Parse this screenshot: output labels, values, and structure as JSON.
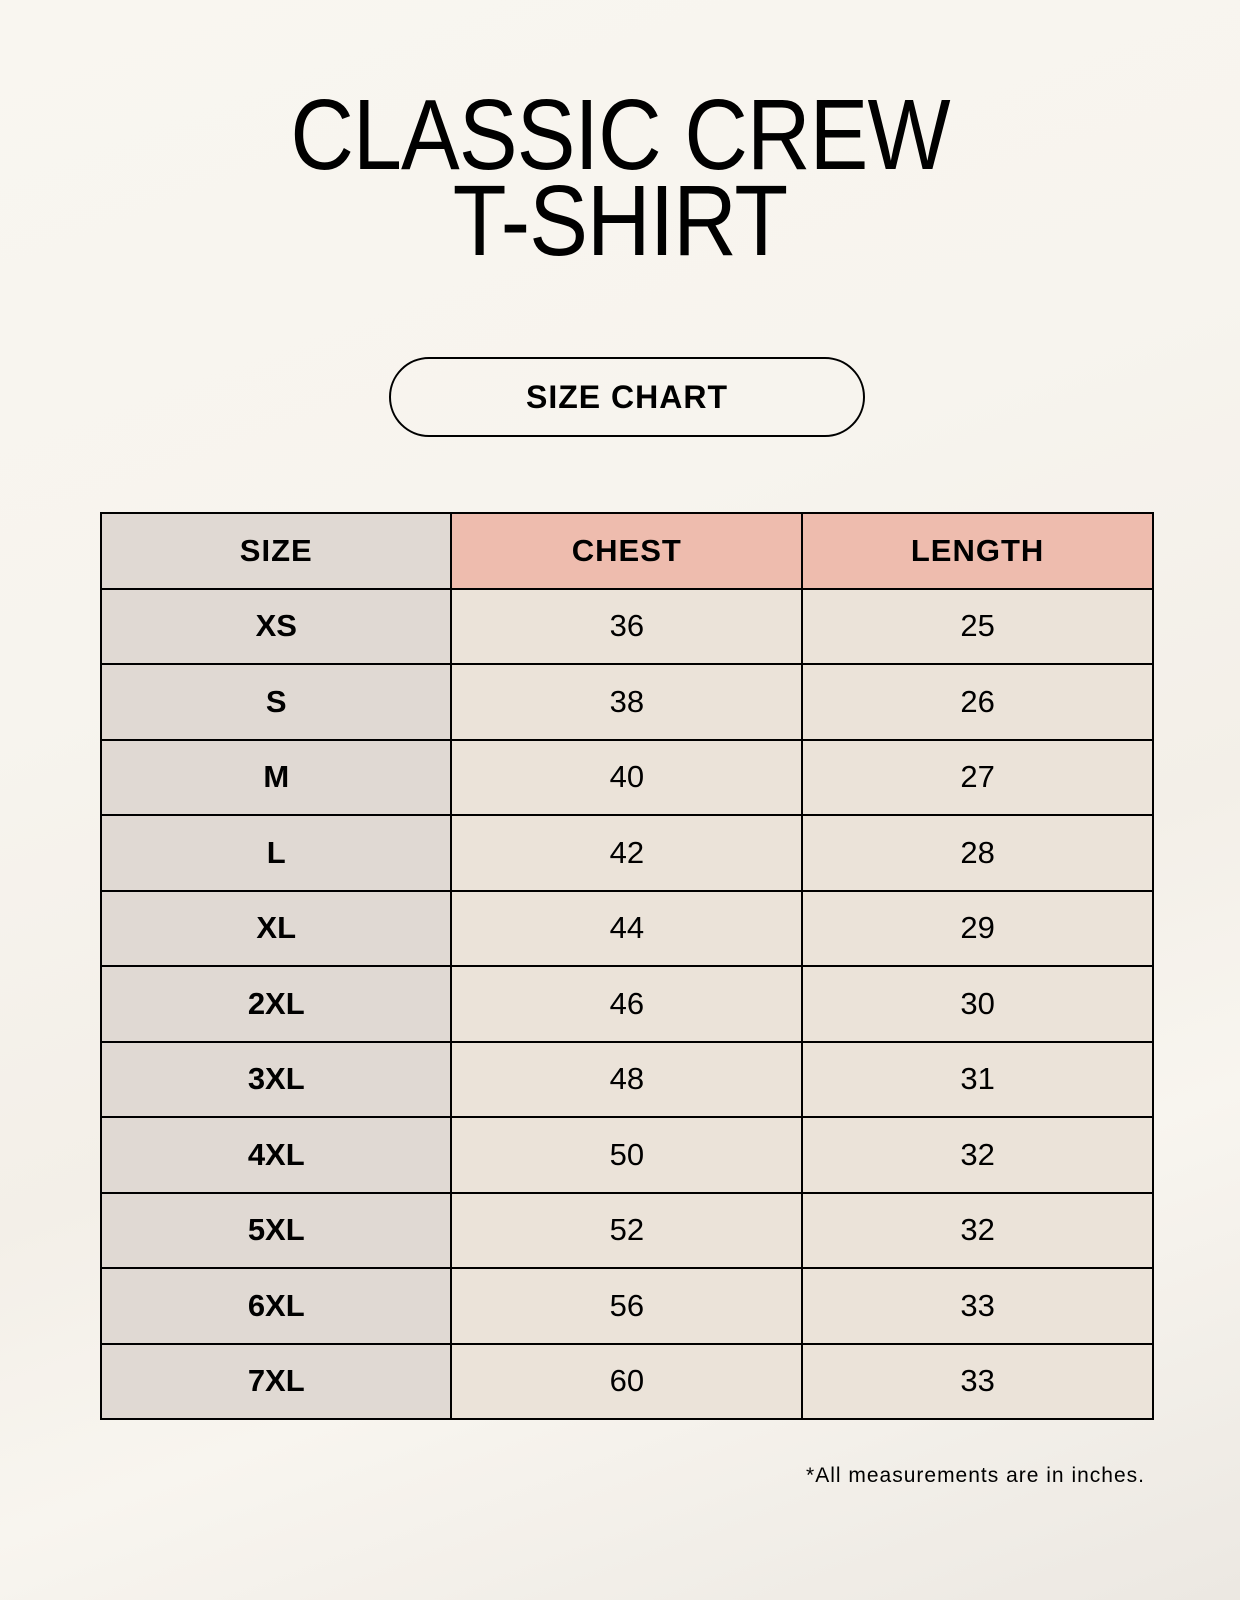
{
  "title": {
    "line1": "CLASSIC CREW",
    "line2": "T-SHIRT"
  },
  "badge": "SIZE CHART",
  "table": {
    "headers": [
      "SIZE",
      "CHEST",
      "LENGTH"
    ],
    "rows": [
      [
        "XS",
        "36",
        "25"
      ],
      [
        "S",
        "38",
        "26"
      ],
      [
        "M",
        "40",
        "27"
      ],
      [
        "L",
        "42",
        "28"
      ],
      [
        "XL",
        "44",
        "29"
      ],
      [
        "2XL",
        "46",
        "30"
      ],
      [
        "3XL",
        "48",
        "31"
      ],
      [
        "4XL",
        "50",
        "32"
      ],
      [
        "5XL",
        "52",
        "32"
      ],
      [
        "6XL",
        "56",
        "33"
      ],
      [
        "7XL",
        "60",
        "33"
      ]
    ]
  },
  "footnote": "*All measurements are in inches.",
  "colors": {
    "background": "#f8f5ef",
    "size_column": "#e0d9d3",
    "header_accent": "#eebcae",
    "cell": "#ebe3d9"
  }
}
